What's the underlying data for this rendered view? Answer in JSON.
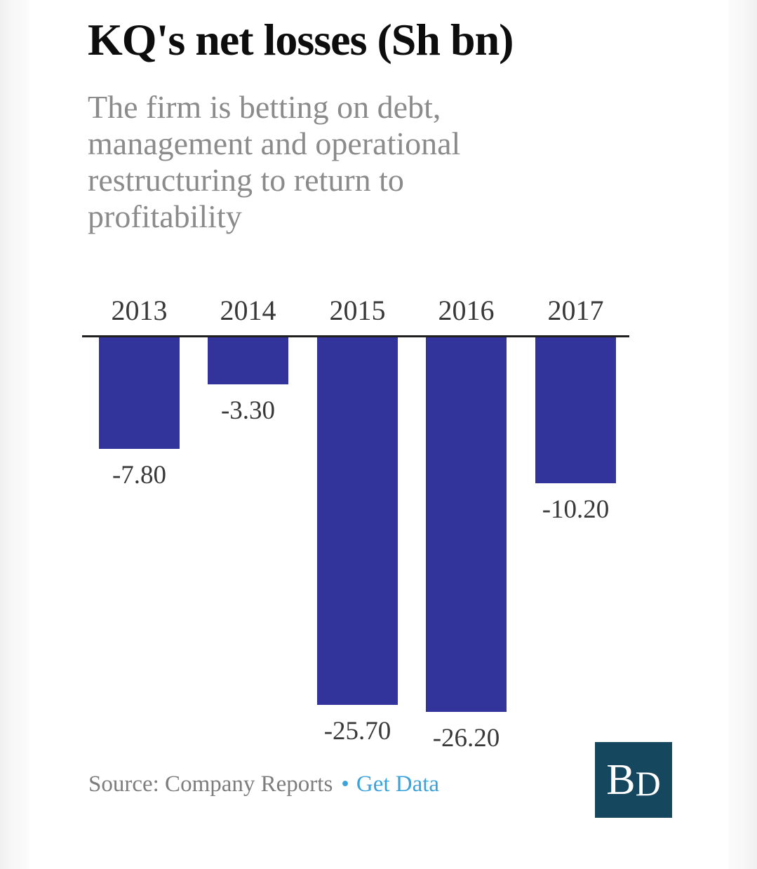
{
  "page": {
    "background": "#ffffff",
    "edge_color": "#f0f0f0"
  },
  "header": {
    "title": "KQ's net losses (Sh bn)",
    "subtitle_lines": [
      "The firm is betting on debt,",
      "management and operational",
      "restructuring to return to",
      "profitability"
    ]
  },
  "chart_data": {
    "type": "bar",
    "title": "KQ's net losses (Sh bn)",
    "subtitle": "The firm is betting on debt, management and operational restructuring to return to profitability",
    "categories": [
      "2013",
      "2014",
      "2015",
      "2016",
      "2017"
    ],
    "values": [
      -7.8,
      -3.3,
      -25.7,
      -26.2,
      -10.2
    ],
    "value_labels": [
      "-7.80",
      "-3.30",
      "-25.70",
      "-26.20",
      "-10.20"
    ],
    "xlabel": "",
    "ylabel": "",
    "ylim": [
      -27,
      0
    ],
    "baseline": 0,
    "orientation": "vertical",
    "grid": false,
    "legend": false,
    "bar_color": "#33339c",
    "axis_color": "#1f1f1f",
    "category_label_position": "above-axis",
    "value_label_position": "below-bar"
  },
  "footer": {
    "source_label": "Source: Company Reports",
    "separator": "•",
    "link_label": "Get Data",
    "link_color": "#3aa3dc"
  },
  "logo": {
    "letters": [
      "B",
      "D"
    ],
    "bg_color": "#15475f",
    "text_color": "#ffffff"
  }
}
